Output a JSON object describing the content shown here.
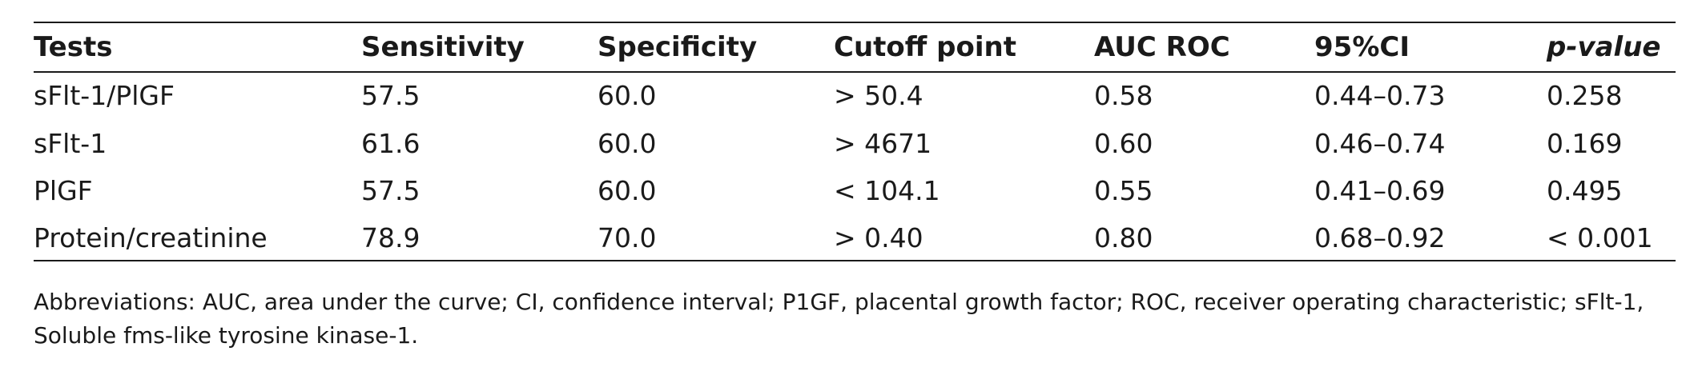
{
  "table": {
    "headers": [
      "Tests",
      "Sensitivity",
      "Specificity",
      "Cutoff point",
      "AUC ROC",
      "95%CI",
      "p-value"
    ],
    "rows": [
      [
        "sFlt-1/PlGF",
        "57.5",
        "60.0",
        "> 50.4",
        "0.58",
        "0.44–0.73",
        "0.258"
      ],
      [
        "sFlt-1",
        "61.6",
        "60.0",
        "> 4671",
        "0.60",
        "0.46–0.74",
        "0.169"
      ],
      [
        "PlGF",
        "57.5",
        "60.0",
        "< 104.1",
        "0.55",
        "0.41–0.69",
        "0.495"
      ],
      [
        "Protein/creatinine",
        "78.9",
        "70.0",
        "> 0.40",
        "0.80",
        "0.68–0.92",
        "< 0.001"
      ]
    ]
  },
  "footnote": {
    "line1": "Abbreviations: AUC, area under the curve; CI, confidence interval; P1GF, placental growth factor; ROC, receiver operating characteristic; sFlt-1,",
    "line2": "Soluble fms-like tyrosine kinase-1."
  }
}
